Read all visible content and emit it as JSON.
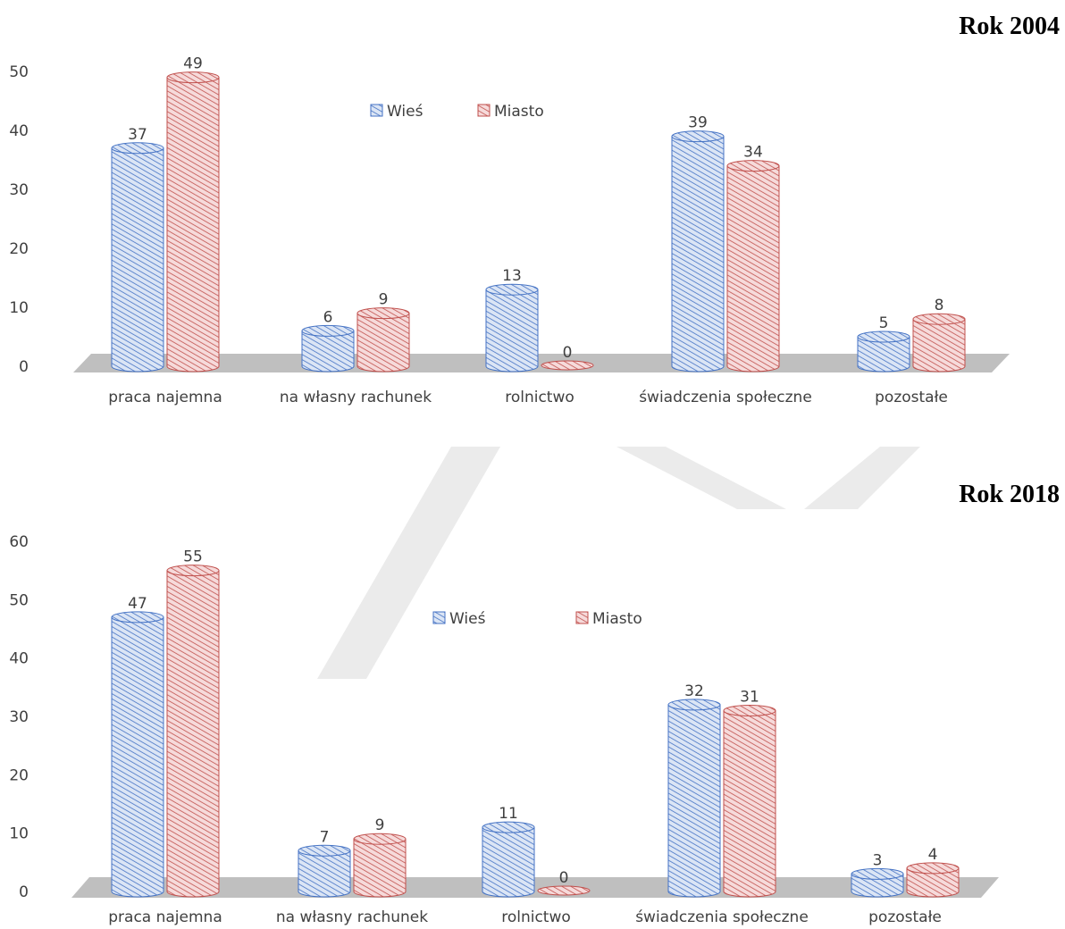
{
  "colors": {
    "wies_fill": "#dbe5f5",
    "wies_hatch": "#4472c4",
    "miasto_fill": "#f6dada",
    "miasto_hatch": "#c0504d",
    "floor": "#bfbfbf",
    "watermark": "#ebebeb"
  },
  "chart_data": [
    {
      "type": "bar",
      "title": "Rok 2004",
      "categories": [
        "praca najemna",
        "na własny rachunek",
        "rolnictwo",
        "świadczenia społeczne",
        "pozostałe"
      ],
      "series": [
        {
          "name": "Wieś",
          "values": [
            37,
            6,
            13,
            39,
            5
          ]
        },
        {
          "name": "Miasto",
          "values": [
            49,
            9,
            0,
            34,
            8
          ]
        }
      ],
      "ylim": [
        0,
        50
      ],
      "yticks": [
        "0",
        "10",
        "20",
        "30",
        "40",
        "50"
      ],
      "legend": "top-center",
      "grid": false
    },
    {
      "type": "bar",
      "title": "Rok 2018",
      "categories": [
        "praca najemna",
        "na własny rachunek",
        "rolnictwo",
        "świadczenia społeczne",
        "pozostałe"
      ],
      "series": [
        {
          "name": "Wieś",
          "values": [
            47,
            7,
            11,
            32,
            3
          ]
        },
        {
          "name": "Miasto",
          "values": [
            55,
            9,
            0,
            31,
            4
          ]
        }
      ],
      "ylim": [
        0,
        60
      ],
      "yticks": [
        "0",
        "10",
        "20",
        "30",
        "40",
        "50",
        "60"
      ],
      "legend": "top-center",
      "grid": false
    }
  ]
}
